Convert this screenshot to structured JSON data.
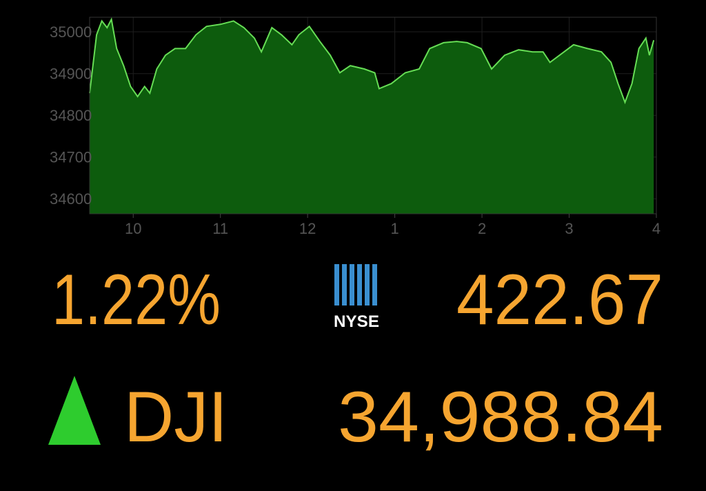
{
  "chart_data": {
    "type": "area",
    "x": [
      9.5,
      9.58,
      9.64,
      9.7,
      9.75,
      9.81,
      9.89,
      9.97,
      10.05,
      10.13,
      10.19,
      10.27,
      10.37,
      10.48,
      10.6,
      10.72,
      10.84,
      11.0,
      11.15,
      11.27,
      11.39,
      11.47,
      11.59,
      11.7,
      11.82,
      11.9,
      12.02,
      12.14,
      12.26,
      12.37,
      12.49,
      12.65,
      12.77,
      12.82,
      12.96,
      13.12,
      13.28,
      13.4,
      13.56,
      13.71,
      13.83,
      13.99,
      14.11,
      14.26,
      14.42,
      14.58,
      14.7,
      14.78,
      14.89,
      15.05,
      15.21,
      15.37,
      15.48,
      15.56,
      15.64,
      15.72,
      15.8,
      15.88,
      15.92,
      15.97
    ],
    "values": [
      34853,
      34993,
      35026,
      35010,
      35030,
      34960,
      34919,
      34869,
      34845,
      34869,
      34853,
      34911,
      34944,
      34960,
      34960,
      34993,
      35013,
      35018,
      35026,
      35010,
      34985,
      34952,
      35010,
      34993,
      34969,
      34993,
      35013,
      34977,
      34944,
      34902,
      34919,
      34911,
      34902,
      34864,
      34876,
      34902,
      34911,
      34960,
      34974,
      34977,
      34974,
      34960,
      34911,
      34944,
      34957,
      34952,
      34952,
      34927,
      34944,
      34969,
      34960,
      34952,
      34927,
      34876,
      34831,
      34876,
      34960,
      34985,
      34944,
      34980
    ],
    "color": "#66dd55",
    "fill_color": "#0d5c0d",
    "xlim": [
      9.5,
      16
    ],
    "xticks": [
      10,
      11,
      12,
      {
        "value": 13,
        "label": "1"
      },
      {
        "value": 14,
        "label": "2"
      },
      {
        "value": 15,
        "label": "3"
      },
      {
        "value": 16,
        "label": "4"
      }
    ],
    "ylim": [
      34564,
      35035
    ],
    "yticks": [
      34600,
      34700,
      34800,
      34900,
      35000
    ],
    "grid": true
  },
  "quote": {
    "change": "1.22%",
    "exchange": "NYSE",
    "exchange_value": "422.67",
    "index": "DJI",
    "index_value": "34,988.84"
  }
}
